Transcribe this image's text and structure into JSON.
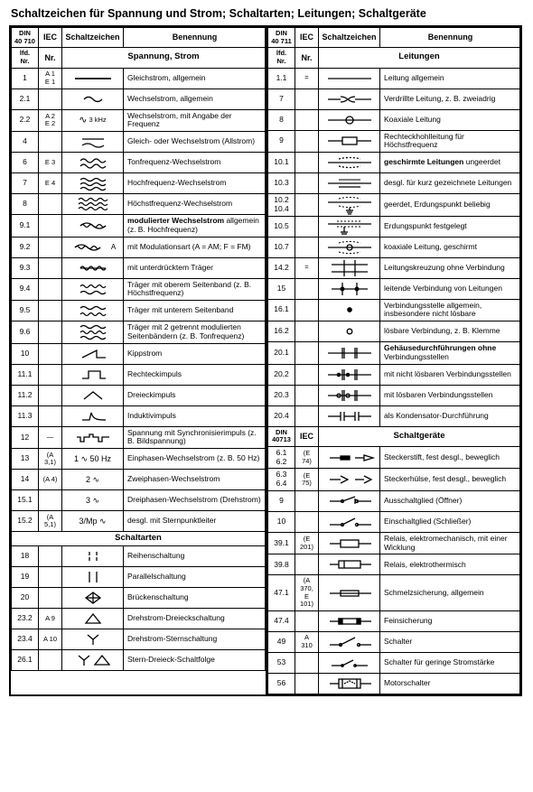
{
  "title": "Schaltzeichen für Spannung und Strom; Schaltarten; Leitungen; Schaltgeräte",
  "headers": {
    "din": "DIN",
    "din_40710": "DIN 40 710",
    "din_40711": "DIN 40 711",
    "din_40713": "DIN 40713",
    "iec": "IEC",
    "lfd": "lfd. Nr.",
    "nr": "Nr.",
    "schaltzeichen": "Schaltzeichen",
    "benennung": "Benennung"
  },
  "sections": {
    "spannung": "Spannung, Strom",
    "schaltarten": "Schaltarten",
    "leitungen": "Leitungen",
    "schaltgeraete": "Schaltgeräte"
  },
  "left": [
    {
      "n": "1",
      "iec": "A 1\nE 1",
      "t": "Gleichstrom, allgemein",
      "sym": "line"
    },
    {
      "n": "2.1",
      "iec": "",
      "t": "Wechselstrom, allgemein",
      "sym": "sine1"
    },
    {
      "n": "2.2",
      "iec": "A 2\nE 2",
      "t": "Wechselstrom, mit Angabe der Frequenz",
      "sym": "sine_khz",
      "extra": "3 kHz"
    },
    {
      "n": "4",
      "iec": "",
      "t": "Gleich- oder Wechselstrom (Allstrom)",
      "sym": "allstrom"
    },
    {
      "n": "6",
      "iec": "E 3",
      "t": "Tonfrequenz-Wechselstrom",
      "sym": "sine2"
    },
    {
      "n": "7",
      "iec": "E 4",
      "t": "Hochfrequenz-Wechselstrom",
      "sym": "sine3"
    },
    {
      "n": "8",
      "iec": "",
      "t": "Höchstfrequenz-Wechselstrom",
      "sym": "sine3b"
    },
    {
      "n": "9.1",
      "iec": "",
      "t": "modulierter Wechselstrom allgemein (z. B. Hochfrequenz)",
      "sym": "mod1",
      "bold": true
    },
    {
      "n": "9.2",
      "iec": "",
      "t": "mit Modulationsart (A = AM; F = FM)",
      "sym": "mod_a",
      "extra": "A"
    },
    {
      "n": "9.3",
      "iec": "",
      "t": "mit unterdrücktem Träger",
      "sym": "mod2"
    },
    {
      "n": "9.4",
      "iec": "",
      "t": "Träger mit oberem Seitenband (z. B. Höchstfrequenz)",
      "sym": "mod3"
    },
    {
      "n": "9.5",
      "iec": "",
      "t": "Träger mit unterem Seitenband",
      "sym": "mod4"
    },
    {
      "n": "9.6",
      "iec": "",
      "t": "Träger mit 2 getrennt modulierten Seitenbändern (z. B. Tonfrequenz)",
      "sym": "mod5"
    },
    {
      "n": "10",
      "iec": "",
      "t": "Kippstrom",
      "sym": "saw"
    },
    {
      "n": "11.1",
      "iec": "",
      "t": "Rechteckimpuls",
      "sym": "rect"
    },
    {
      "n": "11.2",
      "iec": "",
      "t": "Dreieckimpuls",
      "sym": "tri"
    },
    {
      "n": "11.3",
      "iec": "",
      "t": "Induktivimpuls",
      "sym": "ind"
    },
    {
      "n": "12",
      "iec": "—",
      "t": "Spannung mit Synchronisierimpuls (z. B. Bildspannung)",
      "sym": "sync"
    },
    {
      "n": "13",
      "iec": "(A 3,1)",
      "t": "Einphasen-Wechselstrom (z. B. 50 Hz)",
      "sym": "txt",
      "extra": "1 ∿  50 Hz"
    },
    {
      "n": "14",
      "iec": "(A 4)",
      "t": "Zweiphasen-Wechselstrom",
      "sym": "txt",
      "extra": "2 ∿"
    },
    {
      "n": "15.1",
      "iec": "",
      "t": "Dreiphasen-Wechselstrom (Drehstrom)",
      "sym": "txt",
      "extra": "3 ∿"
    },
    {
      "n": "15.2",
      "iec": "(A 5,1)",
      "t": "desgl. mit Sternpunktleiter",
      "sym": "txt",
      "extra": "3/Mp ∿"
    }
  ],
  "schaltarten": [
    {
      "n": "18",
      "iec": "",
      "t": "Reihenschaltung",
      "sym": "two_v"
    },
    {
      "n": "19",
      "iec": "",
      "t": "Parallelschaltung",
      "sym": "two_p"
    },
    {
      "n": "20",
      "iec": "",
      "t": "Brückenschaltung",
      "sym": "bridge"
    },
    {
      "n": "23.2",
      "iec": "A 9",
      "t": "Drehstrom-Dreieckschaltung",
      "sym": "delta"
    },
    {
      "n": "23.4",
      "iec": "A 10",
      "t": "Drehstrom-Sternschaltung",
      "sym": "wye"
    },
    {
      "n": "26.1",
      "iec": "",
      "t": "Stern-Dreieck-Schaltfolge",
      "sym": "wyedelta"
    }
  ],
  "right": [
    {
      "n": "1.1",
      "iec": "=",
      "t": "Leitung allgemein",
      "sym": "hline"
    },
    {
      "n": "7",
      "iec": "",
      "t": "Verdrillte Leitung, z. B. zweiadrig",
      "sym": "twist"
    },
    {
      "n": "8",
      "iec": "",
      "t": "Koaxiale Leitung",
      "sym": "coax"
    },
    {
      "n": "9",
      "iec": "",
      "t": "Rechteckhohlleitung für Höchstfrequenz",
      "sym": "wguide"
    },
    {
      "n": "10.1",
      "iec": "",
      "t": "geschirmte Leitungen ungeerdet",
      "sym": "shield",
      "bold": true
    },
    {
      "n": "10.3",
      "iec": "",
      "t": "desgl. für kurz gezeichnete Leitungen",
      "sym": "shield2"
    },
    {
      "n": "10.2\n10.4",
      "iec": "",
      "t": "geerdet, Erdungspunkt beliebig",
      "sym": "shield_gnd"
    },
    {
      "n": "10.5",
      "iec": "",
      "t": "Erdungspunkt festgelegt",
      "sym": "shield_gnd2"
    },
    {
      "n": "10.7",
      "iec": "",
      "t": "koaxiale Leitung, geschirmt",
      "sym": "coax_sh"
    },
    {
      "n": "14.2",
      "iec": "=",
      "t": "Leitungskreuzung ohne Verbindung",
      "sym": "cross"
    },
    {
      "n": "15",
      "iec": "",
      "t": "leitende Verbindung von Leitungen",
      "sym": "junction"
    },
    {
      "n": "16.1",
      "iec": "",
      "t": "Verbindungsstelle allgemein, insbesondere nicht lösbare",
      "sym": "dot"
    },
    {
      "n": "16.2",
      "iec": "",
      "t": "lösbare Verbindung, z. B. Klemme",
      "sym": "odot"
    },
    {
      "n": "20.1",
      "iec": "",
      "t": "Gehäusedurchführungen ohne Verbindungsstellen",
      "sym": "feedthrough",
      "bold": true
    },
    {
      "n": "20.2",
      "iec": "",
      "t": "mit nicht lösbaren Verbindungsstellen",
      "sym": "feedthrough_d"
    },
    {
      "n": "20.3",
      "iec": "",
      "t": "mit lösbaren Verbindungsstellen",
      "sym": "feedthrough_o"
    },
    {
      "n": "20.4",
      "iec": "",
      "t": "als Kondensator-Durchführung",
      "sym": "feed_cap"
    }
  ],
  "geraete": [
    {
      "n": "6.1\n6.2",
      "iec": "(E 74)",
      "t": "Steckerstift, fest desgl., beweglich",
      "sym": "plug_m"
    },
    {
      "n": "6.3\n6.4",
      "iec": "(E 75)",
      "t": "Steckerhülse, fest desgl., beweglich",
      "sym": "plug_f"
    },
    {
      "n": "9",
      "iec": "",
      "t": "Ausschaltglied (Öffner)",
      "sym": "sw_nc"
    },
    {
      "n": "10",
      "iec": "",
      "t": "Einschaltglied (Schließer)",
      "sym": "sw_no"
    },
    {
      "n": "39.1",
      "iec": "(E 201)",
      "t": "Relais, elektromechanisch, mit einer Wicklung",
      "sym": "relay"
    },
    {
      "n": "39.8",
      "iec": "",
      "t": "Relais, elektrothermisch",
      "sym": "relay_th"
    },
    {
      "n": "47.1",
      "iec": "(A 370, E 101)",
      "t": "Schmelzsicherung, allgemein",
      "sym": "fuse"
    },
    {
      "n": "47.4",
      "iec": "",
      "t": "Feinsicherung",
      "sym": "fuse_fine"
    },
    {
      "n": "49",
      "iec": "A 310",
      "t": "Schalter",
      "sym": "switch"
    },
    {
      "n": "53",
      "iec": "",
      "t": "Schalter für geringe Stromstärke",
      "sym": "switch_s"
    },
    {
      "n": "56",
      "iec": "",
      "t": "Motorschalter",
      "sym": "motor_sw"
    }
  ],
  "style": {
    "stroke": "#000000",
    "stroke_width": 1.3,
    "fill": "none"
  }
}
